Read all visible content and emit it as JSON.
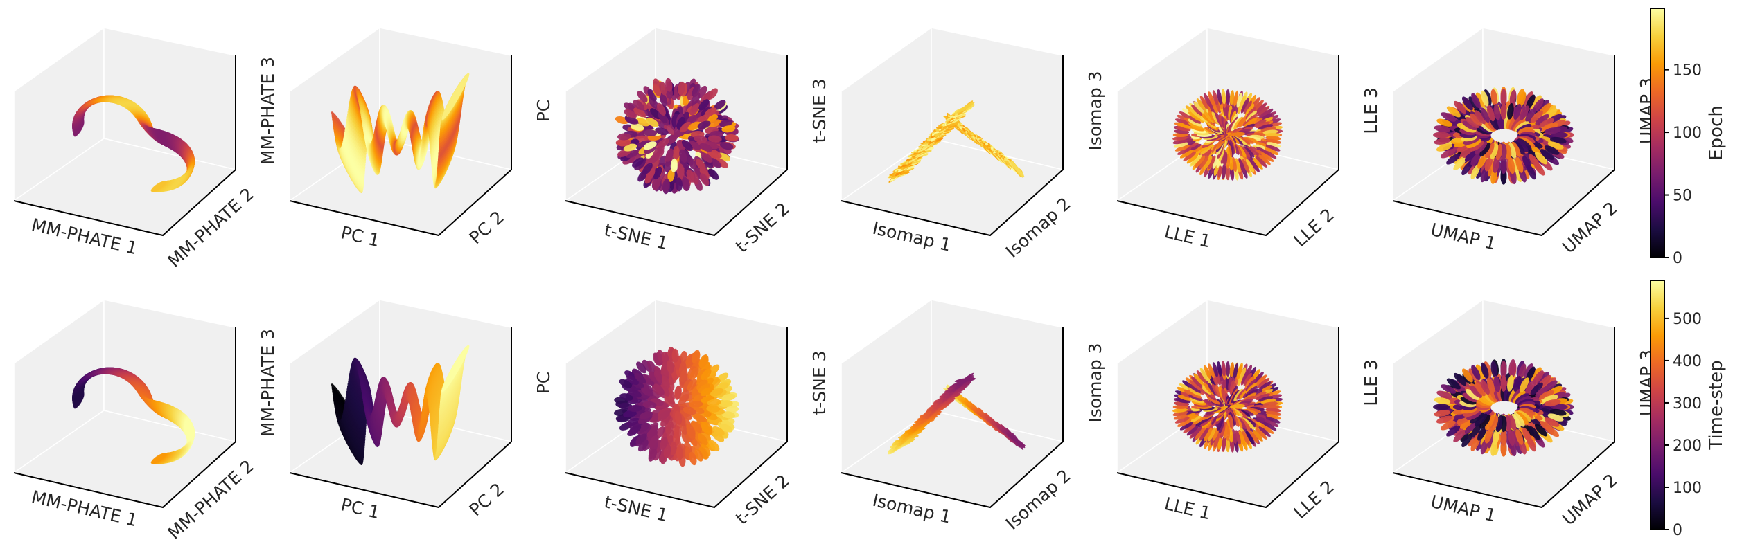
{
  "chart_data": [
    {
      "type": "scatter",
      "row": 1,
      "col": 1,
      "xlabel": "MM-PHATE 1",
      "ylabel": "MM-PHATE 2",
      "zlabel": "MM-PHATE 3",
      "shape": "shell",
      "series": [
        {
          "name": "",
          "color_by": "Epoch"
        }
      ]
    },
    {
      "type": "scatter",
      "row": 1,
      "col": 2,
      "xlabel": "PC 1",
      "ylabel": "PC 2",
      "zlabel": "PC",
      "shape": "bowtie",
      "series": [
        {
          "name": "",
          "color_by": "Epoch"
        }
      ]
    },
    {
      "type": "scatter",
      "row": 1,
      "col": 3,
      "xlabel": "t-SNE 1",
      "ylabel": "t-SNE 2",
      "zlabel": "t-SNE 3",
      "shape": "sphere",
      "series": [
        {
          "name": "",
          "color_by": "Epoch"
        }
      ]
    },
    {
      "type": "scatter",
      "row": 1,
      "col": 4,
      "xlabel": "Isomap 1",
      "ylabel": "Isomap 2",
      "zlabel": "Isomap 3",
      "shape": "fan",
      "series": [
        {
          "name": "",
          "color_by": "Epoch"
        }
      ]
    },
    {
      "type": "scatter",
      "row": 1,
      "col": 5,
      "xlabel": "LLE 1",
      "ylabel": "LLE 2",
      "zlabel": "LLE 3",
      "shape": "star",
      "series": [
        {
          "name": "",
          "color_by": "Epoch"
        }
      ]
    },
    {
      "type": "scatter",
      "row": 1,
      "col": 6,
      "xlabel": "UMAP 1",
      "ylabel": "UMAP 2",
      "zlabel": "UMAP 3",
      "shape": "blobs",
      "series": [
        {
          "name": "",
          "color_by": "Epoch"
        }
      ]
    },
    {
      "type": "scatter",
      "row": 2,
      "col": 1,
      "xlabel": "MM-PHATE 1",
      "ylabel": "MM-PHATE 2",
      "zlabel": "MM-PHATE 3",
      "shape": "shell",
      "series": [
        {
          "name": "",
          "color_by": "Time-step"
        }
      ]
    },
    {
      "type": "scatter",
      "row": 2,
      "col": 2,
      "xlabel": "PC 1",
      "ylabel": "PC 2",
      "zlabel": "PC",
      "shape": "bowtie",
      "series": [
        {
          "name": "",
          "color_by": "Time-step"
        }
      ]
    },
    {
      "type": "scatter",
      "row": 2,
      "col": 3,
      "xlabel": "t-SNE 1",
      "ylabel": "t-SNE 2",
      "zlabel": "t-SNE 3",
      "shape": "sphere",
      "series": [
        {
          "name": "",
          "color_by": "Time-step"
        }
      ]
    },
    {
      "type": "scatter",
      "row": 2,
      "col": 4,
      "xlabel": "Isomap 1",
      "ylabel": "Isomap 2",
      "zlabel": "Isomap 3",
      "shape": "fan",
      "series": [
        {
          "name": "",
          "color_by": "Time-step"
        }
      ]
    },
    {
      "type": "scatter",
      "row": 2,
      "col": 5,
      "xlabel": "LLE 1",
      "ylabel": "LLE 2",
      "zlabel": "LLE 3",
      "shape": "star",
      "series": [
        {
          "name": "",
          "color_by": "Time-step"
        }
      ]
    },
    {
      "type": "scatter",
      "row": 2,
      "col": 6,
      "xlabel": "UMAP 1",
      "ylabel": "UMAP 2",
      "zlabel": "UMAP 3",
      "shape": "blobs",
      "series": [
        {
          "name": "",
          "color_by": "Time-step"
        }
      ]
    }
  ],
  "colorbars": [
    {
      "label": "Epoch",
      "ticks": [
        "0",
        "50",
        "100",
        "150"
      ],
      "tick_values": [
        0,
        50,
        100,
        150
      ],
      "range": [
        0,
        199
      ],
      "colormap": "inferno"
    },
    {
      "label": "Time-step",
      "ticks": [
        "0",
        "100",
        "200",
        "300",
        "400",
        "500"
      ],
      "tick_values": [
        0,
        100,
        200,
        300,
        400,
        500
      ],
      "range": [
        0,
        590
      ],
      "colormap": "inferno"
    }
  ],
  "colors": {
    "pane": "#f0f0f0",
    "pane_edge": "#ffffff",
    "axis_line": "#000000",
    "inferno": [
      "#000004",
      "#1b0c41",
      "#4a0c6b",
      "#781c6d",
      "#a52c60",
      "#cf4446",
      "#ed6925",
      "#fb9b06",
      "#f7d13d",
      "#fcffa4"
    ]
  }
}
